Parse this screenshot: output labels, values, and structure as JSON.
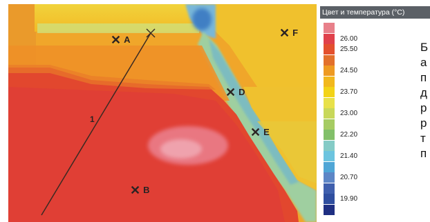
{
  "legend": {
    "title": "Цвет и температура (°C)",
    "rows": [
      {
        "value": "",
        "color": "#e8808a"
      },
      {
        "value": "26.00",
        "color": "#e0414b"
      },
      {
        "value": "25.50",
        "color": "#e3502e"
      },
      {
        "value": "",
        "color": "#e2702c"
      },
      {
        "value": "24.50",
        "color": "#ee9a22"
      },
      {
        "value": "",
        "color": "#f2b81d"
      },
      {
        "value": "23.70",
        "color": "#f3d317"
      },
      {
        "value": "",
        "color": "#e8e14a"
      },
      {
        "value": "23.00",
        "color": "#c8d85a"
      },
      {
        "value": "",
        "color": "#a6cc63"
      },
      {
        "value": "22.20",
        "color": "#82c06a"
      },
      {
        "value": "",
        "color": "#84cbc6"
      },
      {
        "value": "21.40",
        "color": "#6cc4df"
      },
      {
        "value": "",
        "color": "#4fa6d6"
      },
      {
        "value": "20.70",
        "color": "#5d86c6"
      },
      {
        "value": "",
        "color": "#3f5fad"
      },
      {
        "value": "19.90",
        "color": "#2f4e9f"
      },
      {
        "value": "",
        "color": "#1f2f82"
      }
    ]
  },
  "markers": [
    {
      "id": "A",
      "label": "A"
    },
    {
      "id": "F",
      "label": "F"
    },
    {
      "id": "D",
      "label": "D"
    },
    {
      "id": "E",
      "label": "E"
    },
    {
      "id": "B",
      "label": "B"
    }
  ],
  "line": {
    "label": "1"
  },
  "side_text": [
    "Б",
    "а",
    "п",
    "д",
    "р",
    "р",
    "т",
    "п"
  ]
}
